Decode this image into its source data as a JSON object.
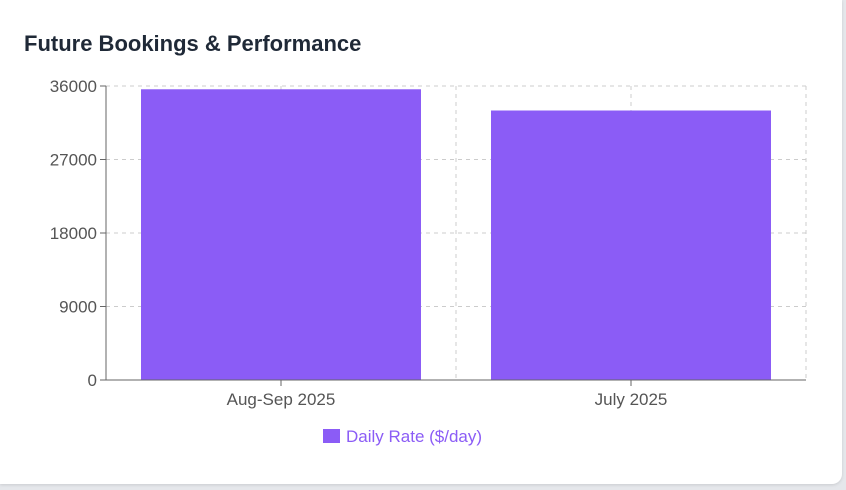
{
  "card": {
    "title": "Future Bookings & Performance"
  },
  "chart_data": {
    "type": "bar",
    "categories": [
      "Aug-Sep 2025",
      "July 2025"
    ],
    "series": [
      {
        "name": "Daily Rate ($/day)",
        "values": [
          35600,
          33000
        ],
        "color": "#8b5cf6"
      }
    ],
    "yticks": [
      0,
      9000,
      18000,
      27000,
      36000
    ],
    "ylim": [
      0,
      36000
    ],
    "grid": true,
    "legend": "bottom"
  }
}
